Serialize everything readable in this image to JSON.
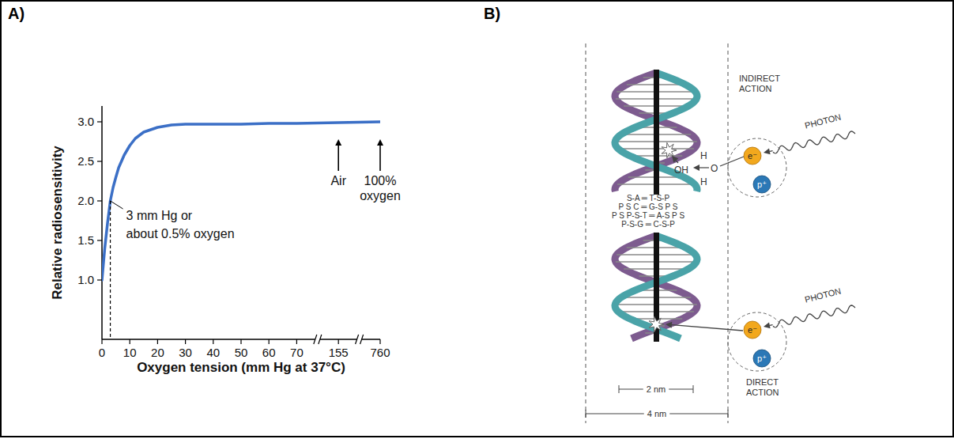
{
  "panel_labels": [
    "A)",
    "B)"
  ],
  "chart_data": {
    "type": "line",
    "x_label": "Oxygen tension (mm Hg at 37°C)",
    "y_label": "Relative radiosensitivity",
    "x": [
      0,
      1,
      2,
      3,
      4,
      5,
      6,
      8,
      10,
      12,
      15,
      20,
      25,
      30,
      40,
      50,
      60,
      70,
      155,
      760
    ],
    "values": [
      1.0,
      1.4,
      1.72,
      2.0,
      2.17,
      2.3,
      2.42,
      2.58,
      2.7,
      2.79,
      2.87,
      2.93,
      2.96,
      2.97,
      2.97,
      2.97,
      2.98,
      2.98,
      2.99,
      3.0
    ],
    "color": "#3b6fc6",
    "xlim": [
      0,
      760
    ],
    "ylim": [
      0.25,
      3.2
    ],
    "xticks": [
      0,
      10,
      20,
      30,
      40,
      50,
      60,
      70,
      155,
      760
    ],
    "yticks": [
      {
        "value": 1,
        "label": "1.0"
      },
      {
        "value": 1.5,
        "label": "1.5"
      },
      {
        "value": 2,
        "label": "2.0"
      },
      {
        "value": 2.5,
        "label": "2.5"
      },
      {
        "value": 3,
        "label": "3.0"
      }
    ],
    "grid": false,
    "annotations": [
      {
        "x": 3,
        "y": 2,
        "lines": [
          "3 mm Hg or",
          "about 0.5% oxygen"
        ]
      },
      {
        "x": 155,
        "lines": [
          "Air"
        ]
      },
      {
        "x": 760,
        "lines": [
          "100%",
          "oxygen"
        ]
      }
    ]
  },
  "diagram": {
    "indirect_label": [
      "INDIRECT",
      "ACTION"
    ],
    "direct_label": [
      "DIRECT",
      "ACTION"
    ],
    "atoms": [
      {
        "photon": "PHOTON",
        "electron": "e⁻",
        "proton": "p⁺"
      },
      {
        "photon": "PHOTON",
        "electron": "e⁻",
        "proton": "p⁺"
      }
    ],
    "water": {
      "oxygen": "O",
      "hydrogens": [
        "H",
        "H"
      ],
      "radical": "OH"
    },
    "base_pairs": [
      "S-A ═ T-S-P",
      "P S C ═ G-S P S",
      "P S P-S-T ═ A-S P S",
      "P-S-G ═ C-S-P"
    ],
    "dimensions": [
      "2 nm",
      "4 nm"
    ]
  }
}
